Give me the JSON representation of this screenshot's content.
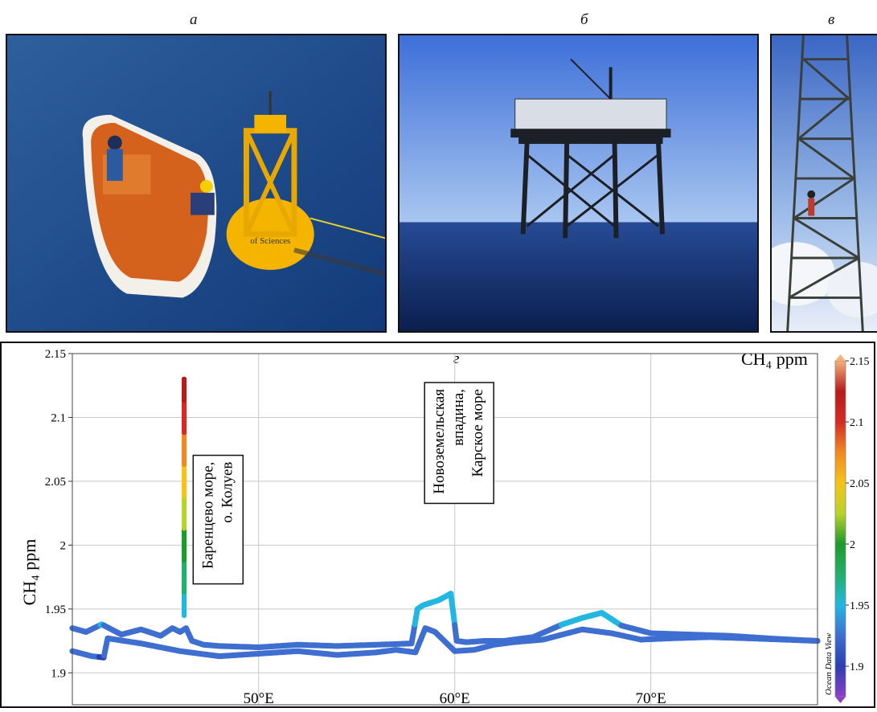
{
  "panels": {
    "a": "а",
    "b": "б",
    "v": "в",
    "g": "г"
  },
  "photo_a": {
    "description_icon": "boat-and-buoy-photo",
    "buoy_text": "of Sciences"
  },
  "photo_b": {
    "description_icon": "offshore-platform-photo"
  },
  "photo_v": {
    "description_icon": "measurement-tower-photo"
  },
  "chart_data": {
    "type": "scatter",
    "title": "",
    "ylabel": "CH₄ ppm",
    "xlabel": "",
    "xlim": [
      40.5,
      78.5
    ],
    "ylim": [
      1.875,
      2.15
    ],
    "xticks": [
      "50°E",
      "60°E",
      "70°E"
    ],
    "xtick_values": [
      50,
      60,
      70
    ],
    "yticks": [
      "1.9",
      "1.95",
      "2",
      "2.05",
      "2.1",
      "2.15"
    ],
    "ytick_values": [
      1.9,
      1.95,
      2.0,
      2.05,
      2.1,
      2.15
    ],
    "grid": true,
    "colorbar": {
      "title": "CH₄ ppm",
      "range": [
        1.875,
        2.15
      ],
      "ticks": [
        "1.9",
        "1.95",
        "2",
        "2.05",
        "2.1",
        "2.15"
      ],
      "tick_values": [
        1.9,
        1.95,
        2.0,
        2.05,
        2.1,
        2.15
      ],
      "side_label": "Ocean Data View",
      "colors": [
        "#8a40c8",
        "#2a3fb0",
        "#3e6ed0",
        "#22b7e0",
        "#22b06a",
        "#1e9a2a",
        "#b9d22a",
        "#f5c418",
        "#f08a20",
        "#d52a26",
        "#b51c1c",
        "#f6b07a"
      ]
    },
    "annotations": [
      {
        "text_lines": [
          "Баренцево море,",
          "о. Колуев"
        ],
        "x": 47.4,
        "y": 2.02
      },
      {
        "text_lines": [
          "Новоземельская",
          "впадина,",
          "Карское море"
        ],
        "x": 59.2,
        "y": 2.08
      }
    ],
    "series": [
      {
        "x": [
          40.5,
          41.2,
          42.0,
          43.0,
          44.0,
          45.0,
          45.6,
          46.0,
          46.3,
          46.6,
          47.2,
          48.0,
          50.0,
          52.0,
          54.0,
          56.0,
          57.8,
          58.1,
          58.4,
          59.2,
          59.8,
          60.1,
          60.6,
          61.5,
          62.5,
          64.0,
          65.5,
          66.5,
          67.5,
          68.5,
          70.0,
          72.0,
          74.0,
          76.0,
          78.5
        ],
        "y": [
          1.935,
          1.932,
          1.938,
          1.93,
          1.934,
          1.929,
          1.935,
          1.932,
          1.935,
          1.925,
          1.922,
          1.921,
          1.92,
          1.922,
          1.921,
          1.922,
          1.923,
          1.95,
          1.953,
          1.957,
          1.962,
          1.925,
          1.924,
          1.925,
          1.925,
          1.928,
          1.938,
          1.943,
          1.947,
          1.937,
          1.931,
          1.93,
          1.929,
          1.927,
          1.925
        ]
      },
      {
        "x": [
          40.5,
          41.5,
          42.1,
          42.3,
          44.0,
          46.0,
          48.0,
          50.0,
          52.0,
          54.0,
          56.0,
          57.0,
          58.0,
          58.5,
          59.0,
          60.0,
          61.0,
          62.0,
          63.0,
          64.5,
          65.5,
          66.5,
          68.0,
          69.5,
          71.0,
          73.0,
          75.0,
          78.5
        ],
        "y": [
          1.917,
          1.913,
          1.912,
          1.927,
          1.923,
          1.917,
          1.913,
          1.915,
          1.917,
          1.914,
          1.916,
          1.918,
          1.916,
          1.935,
          1.932,
          1.917,
          1.918,
          1.922,
          1.924,
          1.926,
          1.93,
          1.934,
          1.931,
          1.926,
          1.927,
          1.928,
          1.927,
          1.925
        ]
      },
      {
        "x": [
          46.2,
          46.2,
          46.2,
          46.2,
          46.2,
          46.2,
          46.2,
          46.2,
          46.2,
          46.2,
          46.2,
          46.2,
          46.2,
          46.2,
          46.2,
          46.2,
          46.2,
          46.2,
          46.2,
          46.2,
          46.2,
          46.2,
          46.2,
          46.2,
          46.2,
          46.2,
          46.2,
          46.2,
          46.2,
          46.2
        ],
        "y": [
          1.945,
          1.95,
          1.955,
          1.96,
          1.965,
          1.97,
          1.975,
          1.98,
          1.985,
          1.99,
          1.995,
          2.0,
          2.005,
          2.01,
          2.02,
          2.025,
          2.03,
          2.04,
          2.05,
          2.055,
          2.06,
          2.07,
          2.075,
          2.08,
          2.09,
          2.1,
          2.105,
          2.11,
          2.12,
          2.13
        ]
      }
    ]
  }
}
